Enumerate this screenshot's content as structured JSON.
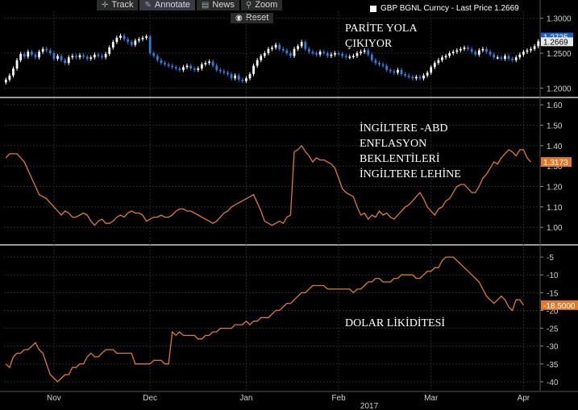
{
  "toolbar": {
    "track": "Track",
    "annotate": "Annotate",
    "news": "News",
    "zoom": "Zoom",
    "reset": "Reset"
  },
  "legend": {
    "text": "GBP BGNL Curncy - Last Price 1.2669"
  },
  "annotations": {
    "panel1": "PARİTE YOLA\nÇIKIYOR",
    "panel2": "İNGİLTERE -ABD\nENFLASYON\nBEKLENTİLERİ\nİNGİLTERE LEHİNE",
    "panel3": "DOLAR LİKİDİTESİ"
  },
  "colors": {
    "background": "#000000",
    "grid": "#2a2a2a",
    "separator": "#9a9a9a",
    "up_candle": "#ffffff",
    "down_candle": "#2f7fe0",
    "line_series": "#e07a2a",
    "axis_text": "#d0d0d0",
    "tag_blue": "#2060c0",
    "tag_orange": "#e07a2a"
  },
  "chart_data": [
    {
      "type": "candlestick",
      "series_name": "GBP BGNL Curncy",
      "ylim": [
        1.19,
        1.31
      ],
      "yticks": [
        "1.3000",
        "1.2500",
        "1.2000"
      ],
      "ytick_values": [
        1.3,
        1.25,
        1.2
      ],
      "last_value_tags": [
        "1.2725",
        "1.2669"
      ],
      "close": [
        1.212,
        1.218,
        1.228,
        1.24,
        1.249,
        1.245,
        1.252,
        1.248,
        1.244,
        1.252,
        1.256,
        1.254,
        1.25,
        1.242,
        1.246,
        1.24,
        1.236,
        1.244,
        1.246,
        1.244,
        1.247,
        1.245,
        1.242,
        1.244,
        1.248,
        1.246,
        1.244,
        1.249,
        1.258,
        1.266,
        1.272,
        1.275,
        1.27,
        1.266,
        1.262,
        1.268,
        1.27,
        1.272,
        1.274,
        1.25,
        1.246,
        1.24,
        1.236,
        1.234,
        1.232,
        1.23,
        1.228,
        1.226,
        1.23,
        1.232,
        1.228,
        1.226,
        1.228,
        1.234,
        1.236,
        1.238,
        1.232,
        1.226,
        1.224,
        1.222,
        1.22,
        1.214,
        1.218,
        1.212,
        1.21,
        1.214,
        1.22,
        1.232,
        1.24,
        1.246,
        1.25,
        1.256,
        1.258,
        1.262,
        1.256,
        1.254,
        1.25,
        1.246,
        1.256,
        1.26,
        1.266,
        1.256,
        1.252,
        1.25,
        1.248,
        1.252,
        1.25,
        1.246,
        1.248,
        1.25,
        1.249,
        1.246,
        1.244,
        1.245,
        1.246,
        1.25,
        1.252,
        1.254,
        1.248,
        1.24,
        1.236,
        1.234,
        1.232,
        1.226,
        1.224,
        1.222,
        1.226,
        1.22,
        1.218,
        1.216,
        1.214,
        1.216,
        1.214,
        1.218,
        1.222,
        1.23,
        1.236,
        1.24,
        1.244,
        1.246,
        1.25,
        1.252,
        1.254,
        1.256,
        1.258,
        1.256,
        1.252,
        1.248,
        1.254,
        1.256,
        1.252,
        1.248,
        1.244,
        1.244,
        1.242,
        1.246,
        1.242,
        1.24,
        1.244,
        1.248,
        1.252,
        1.254,
        1.256,
        1.26,
        1.2669
      ]
    },
    {
      "type": "line",
      "series_name": "",
      "ylim": [
        0.93,
        1.62
      ],
      "yticks": [
        "1.60",
        "1.50",
        "1.40",
        "1.30",
        "1.20",
        "1.10",
        "1.00"
      ],
      "ytick_values": [
        1.6,
        1.5,
        1.4,
        1.3,
        1.2,
        1.1,
        1.0
      ],
      "last_value_tag": "1.3173",
      "values": [
        1.34,
        1.36,
        1.36,
        1.36,
        1.34,
        1.32,
        1.28,
        1.24,
        1.2,
        1.16,
        1.15,
        1.14,
        1.12,
        1.1,
        1.08,
        1.06,
        1.08,
        1.07,
        1.05,
        1.05,
        1.06,
        1.07,
        1.06,
        1.03,
        1.01,
        1.03,
        1.04,
        1.02,
        1.02,
        1.03,
        1.05,
        1.06,
        1.05,
        1.07,
        1.08,
        1.07,
        1.07,
        1.06,
        1.03,
        1.04,
        1.05,
        1.05,
        1.06,
        1.05,
        1.05,
        1.06,
        1.08,
        1.09,
        1.09,
        1.08,
        1.08,
        1.07,
        1.06,
        1.05,
        1.04,
        1.03,
        1.02,
        1.03,
        1.05,
        1.07,
        1.08,
        1.1,
        1.11,
        1.12,
        1.13,
        1.14,
        1.15,
        1.16,
        1.12,
        1.08,
        1.03,
        1.02,
        1.01,
        1.02,
        1.03,
        1.02,
        1.05,
        1.06,
        1.37,
        1.38,
        1.4,
        1.37,
        1.35,
        1.32,
        1.34,
        1.33,
        1.33,
        1.32,
        1.31,
        1.29,
        1.24,
        1.19,
        1.17,
        1.16,
        1.15,
        1.1,
        1.06,
        1.07,
        1.04,
        1.06,
        1.05,
        1.08,
        1.06,
        1.07,
        1.05,
        1.04,
        1.06,
        1.08,
        1.1,
        1.11,
        1.13,
        1.15,
        1.17,
        1.14,
        1.1,
        1.08,
        1.06,
        1.09,
        1.1,
        1.13,
        1.14,
        1.17,
        1.2,
        1.21,
        1.21,
        1.19,
        1.17,
        1.17,
        1.2,
        1.24,
        1.26,
        1.29,
        1.32,
        1.31,
        1.34,
        1.36,
        1.38,
        1.37,
        1.35,
        1.38,
        1.38,
        1.34,
        1.32
      ]
    },
    {
      "type": "line",
      "series_name": "",
      "ylim": [
        -42.5,
        -2.5
      ],
      "yticks": [
        "-5",
        "-10",
        "-15",
        "-20",
        "-25",
        "-30",
        "-35",
        "-40"
      ],
      "ytick_values": [
        -5,
        -10,
        -15,
        -20,
        -25,
        -30,
        -35,
        -40
      ],
      "last_value_tag": "-18.5000",
      "values": [
        -35,
        -36,
        -33,
        -32,
        -32,
        -31,
        -31,
        -30,
        -29,
        -31,
        -32,
        -35,
        -38,
        -39,
        -40,
        -39,
        -38,
        -38,
        -36,
        -36,
        -35,
        -35,
        -33,
        -32,
        -33,
        -33,
        -32,
        -31,
        -31,
        -31,
        -32,
        -32,
        -32,
        -32,
        -32,
        -35,
        -35,
        -35,
        -35,
        -35,
        -34,
        -34,
        -34,
        -35,
        -35,
        -26,
        -27,
        -26,
        -27,
        -27,
        -27,
        -27,
        -28,
        -28,
        -27,
        -27,
        -26,
        -26,
        -25,
        -25,
        -25,
        -25,
        -24,
        -24,
        -24,
        -23,
        -24,
        -23,
        -23,
        -22,
        -22,
        -22,
        -21,
        -20,
        -20,
        -19,
        -18,
        -18,
        -17,
        -16,
        -15,
        -15,
        -14,
        -13,
        -13,
        -13,
        -13,
        -14,
        -14,
        -14,
        -14,
        -14,
        -14,
        -14,
        -15,
        -14,
        -14,
        -13,
        -12,
        -12,
        -11,
        -11,
        -12,
        -12,
        -12,
        -11,
        -11,
        -10,
        -10,
        -10,
        -10,
        -11,
        -11,
        -10,
        -9,
        -9,
        -8,
        -8,
        -6,
        -5,
        -5,
        -5,
        -6,
        -7,
        -8,
        -9,
        -10,
        -11,
        -12,
        -14,
        -16,
        -17,
        -18,
        -17,
        -16,
        -17,
        -19,
        -20,
        -17,
        -17,
        -18.5
      ]
    }
  ],
  "x_axis": {
    "months": [
      "Nov",
      "Dec",
      "Jan",
      "Feb",
      "Mar",
      "Apr"
    ],
    "month_index": [
      13,
      39,
      65,
      90,
      115,
      140
    ],
    "year_label": "2017"
  }
}
